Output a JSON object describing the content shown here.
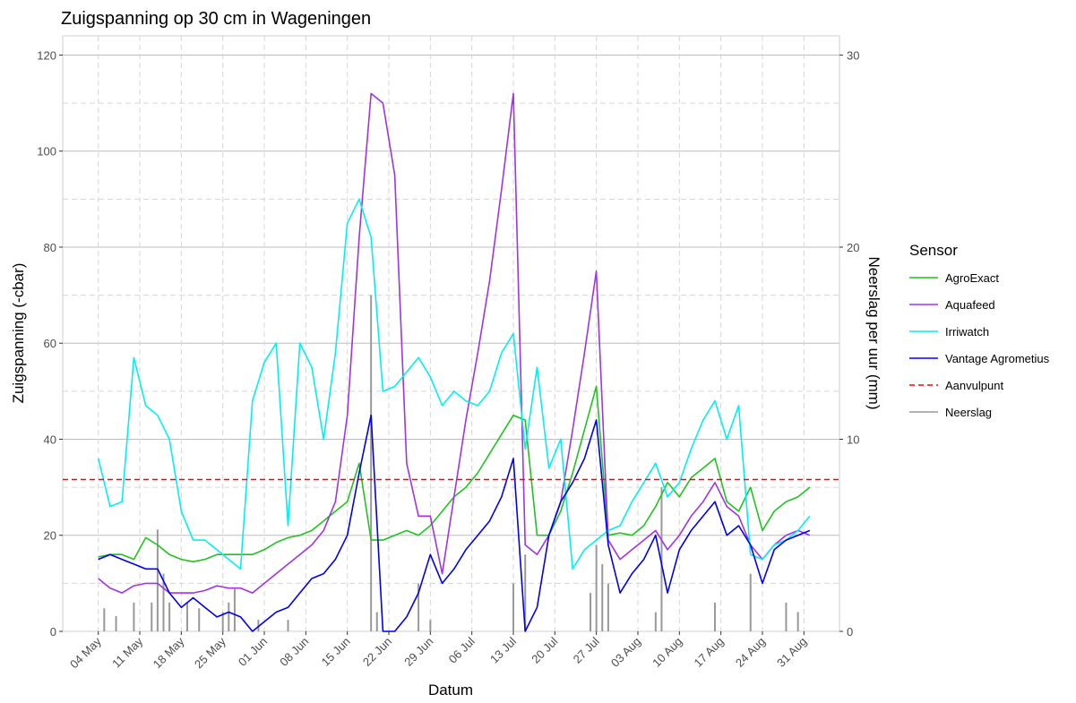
{
  "chart_data": {
    "type": "line",
    "title": "Zuigspanning op 30 cm in Wageningen",
    "xlabel": "Datum",
    "ylabel": "Zuigspanning (-cbar)",
    "y2label": "Neerslag per uur (mm)",
    "legend_title": "Sensor",
    "legend_position": "right",
    "grid": true,
    "xlim": [
      "28 Apr",
      "06 Sep"
    ],
    "xticks": [
      "04 May",
      "11 May",
      "18 May",
      "25 May",
      "01 Jun",
      "08 Jun",
      "15 Jun",
      "22 Jun",
      "29 Jun",
      "06 Jul",
      "13 Jul",
      "20 Jul",
      "27 Jul",
      "03 Aug",
      "10 Aug",
      "17 Aug",
      "24 Aug",
      "31 Aug"
    ],
    "ylim": [
      0,
      124
    ],
    "yticks": [
      0,
      20,
      40,
      60,
      80,
      100,
      120
    ],
    "y_minor_ticks": [
      10,
      30,
      50,
      70,
      90,
      110
    ],
    "y2lim": [
      0,
      31
    ],
    "y2ticks": [
      0,
      10,
      20,
      30
    ],
    "x": [
      "04 May",
      "06 May",
      "08 May",
      "10 May",
      "12 May",
      "14 May",
      "16 May",
      "18 May",
      "20 May",
      "22 May",
      "24 May",
      "26 May",
      "28 May",
      "30 May",
      "01 Jun",
      "03 Jun",
      "05 Jun",
      "07 Jun",
      "09 Jun",
      "11 Jun",
      "13 Jun",
      "15 Jun",
      "17 Jun",
      "19 Jun",
      "21 Jun",
      "23 Jun",
      "25 Jun",
      "27 Jun",
      "29 Jun",
      "01 Jul",
      "03 Jul",
      "05 Jul",
      "07 Jul",
      "09 Jul",
      "11 Jul",
      "13 Jul",
      "15 Jul",
      "17 Jul",
      "19 Jul",
      "21 Jul",
      "23 Jul",
      "25 Jul",
      "27 Jul",
      "29 Jul",
      "31 Jul",
      "02 Aug",
      "04 Aug",
      "06 Aug",
      "08 Aug",
      "10 Aug",
      "12 Aug",
      "14 Aug",
      "16 Aug",
      "18 Aug",
      "20 Aug",
      "22 Aug",
      "24 Aug",
      "26 Aug",
      "28 Aug",
      "30 Aug",
      "01 Sep"
    ],
    "series": [
      {
        "name": "AgroExact",
        "color": "#1fc41f",
        "values": [
          15.5,
          16,
          16,
          15,
          19.5,
          18,
          16,
          15,
          14.5,
          15,
          16,
          16,
          16,
          16,
          17,
          18.5,
          19.5,
          20,
          21,
          23,
          25,
          27,
          35,
          19,
          19,
          20,
          21,
          20,
          22,
          25,
          28,
          30,
          33,
          37,
          41,
          45,
          44,
          20,
          20,
          25,
          33,
          42,
          51,
          20,
          20.5,
          20,
          22,
          26,
          31,
          28,
          32,
          34,
          36,
          27,
          25,
          30,
          21,
          25,
          27,
          28,
          30
        ]
      },
      {
        "name": "Aquafeed",
        "color": "#a033e6",
        "values": [
          11,
          9,
          8,
          9.5,
          10,
          10,
          8,
          8,
          8,
          8.5,
          9.5,
          9,
          9,
          8,
          10,
          12,
          14,
          16,
          18,
          21,
          27,
          45,
          82,
          112,
          110,
          95,
          35,
          24,
          24,
          12,
          28,
          44,
          58,
          73,
          92,
          112,
          18,
          16,
          20,
          27,
          42,
          58,
          75,
          19,
          15,
          17,
          19,
          21,
          17,
          20,
          24,
          27,
          31,
          26,
          24,
          18,
          15,
          18,
          20,
          21,
          20
        ]
      },
      {
        "name": "Irriwatch",
        "color": "#00f0f0",
        "values": [
          36,
          26,
          27,
          57,
          47,
          45,
          40,
          25,
          19,
          19,
          17,
          15,
          13,
          48,
          56,
          60,
          22,
          60,
          55,
          40,
          58,
          85,
          90,
          82,
          50,
          51,
          54,
          57,
          53,
          47,
          50,
          48,
          47,
          50,
          58,
          62,
          38,
          55,
          34,
          40,
          13,
          17,
          19,
          21,
          22,
          27,
          31,
          35,
          28,
          31,
          38,
          44,
          48,
          40,
          47,
          16,
          15,
          18,
          19,
          21,
          24
        ]
      },
      {
        "name": "Vantage Agrometius",
        "color": "#0000f0",
        "values": [
          15,
          16,
          15,
          14,
          13,
          13,
          8,
          5,
          7,
          5,
          3,
          4,
          3,
          0,
          2,
          4,
          5,
          8,
          11,
          12,
          15,
          20,
          33,
          45,
          0,
          0,
          3,
          8,
          16,
          10,
          13,
          17,
          20,
          23,
          28,
          36,
          0,
          5,
          20,
          27,
          31,
          36,
          44,
          18,
          8,
          12,
          15,
          20,
          8,
          17,
          21,
          24,
          27,
          20,
          22,
          18,
          10,
          17,
          19,
          20,
          21
        ]
      },
      {
        "name": "Aanvulpunt",
        "color": "#ff0000",
        "value": 31.6,
        "linetype": "dashed"
      },
      {
        "name": "Neerslag",
        "color": "#999999",
        "axis": "y2",
        "x": [
          "05 May",
          "07 May",
          "10 May",
          "13 May",
          "14 May",
          "15 May",
          "16 May",
          "19 May",
          "21 May",
          "25 May",
          "26 May",
          "27 May",
          "31 May",
          "05 Jun",
          "19 Jun",
          "20 Jun",
          "27 Jun",
          "29 Jun",
          "13 Jul",
          "15 Jul",
          "26 Jul",
          "27 Jul",
          "28 Jul",
          "29 Jul",
          "06 Aug",
          "07 Aug",
          "16 Aug",
          "22 Aug",
          "28 Aug",
          "30 Aug"
        ],
        "values": [
          1.2,
          0.8,
          1.5,
          1.5,
          5.3,
          3,
          1.5,
          1.5,
          1.2,
          1,
          1.5,
          2.2,
          0.6,
          0.6,
          17.5,
          1,
          2.5,
          0.6,
          2.5,
          4,
          2,
          4.5,
          3.5,
          2.5,
          1,
          7.5,
          1.5,
          3,
          1.5,
          1
        ]
      }
    ]
  }
}
